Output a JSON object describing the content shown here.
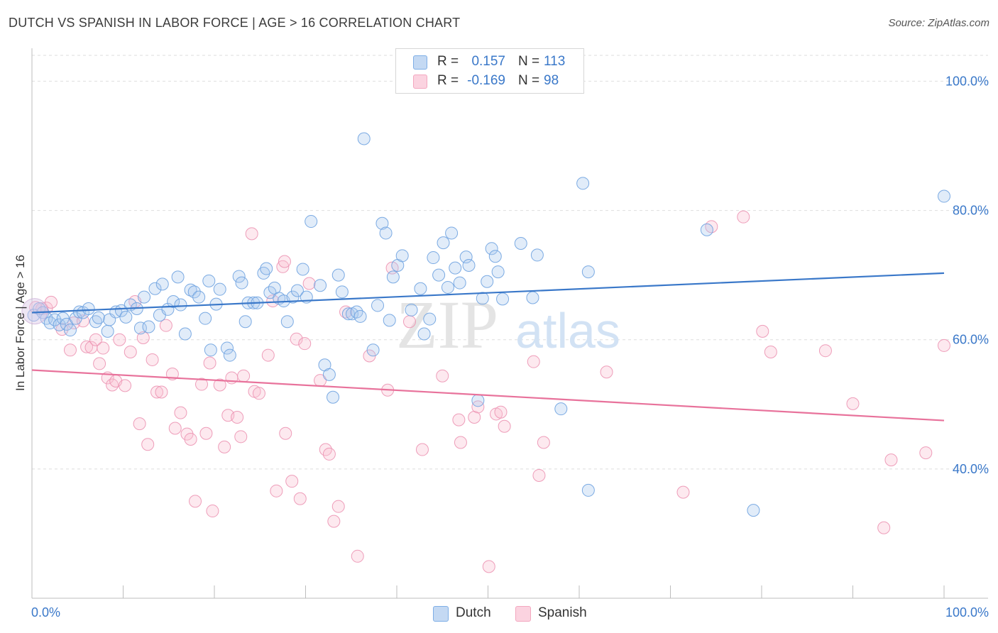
{
  "title": "DUTCH VS SPANISH IN LABOR FORCE | AGE > 16 CORRELATION CHART",
  "source": "Source: ZipAtlas.com",
  "watermark": {
    "zip": "ZIP",
    "atlas": "atlas"
  },
  "legend": {
    "rows": [
      {
        "r_label": "R =",
        "r_value": "0.157",
        "n_label": "N =",
        "n_value": "113",
        "color": "#7eaee6"
      },
      {
        "r_label": "R =",
        "r_value": "-0.169",
        "n_label": "N =",
        "n_value": "98",
        "color": "#f3a7bf"
      }
    ]
  },
  "bottom_legend": [
    {
      "label": "Dutch",
      "color": "#7eaee6"
    },
    {
      "label": "Spanish",
      "color": "#f3a7bf"
    }
  ],
  "chart_data": {
    "type": "scatter",
    "title": "DUTCH VS SPANISH IN LABOR FORCE | AGE > 16 CORRELATION CHART",
    "xlabel": "",
    "ylabel": "In Labor Force | Age > 16",
    "xlim": [
      0,
      100
    ],
    "ylim": [
      20,
      104
    ],
    "x_tick_labels": [
      "0.0%",
      "100.0%"
    ],
    "y_ticks": [
      40,
      60,
      80,
      100
    ],
    "y_tick_labels": [
      "40.0%",
      "60.0%",
      "80.0%",
      "100.0%"
    ],
    "grid": true,
    "legend_position": "top-center",
    "colors": {
      "dutch": "#3a78c9",
      "spanish": "#e8729b"
    },
    "series": [
      {
        "name": "Dutch",
        "trend": {
          "start": [
            0,
            64.2
          ],
          "end": [
            100,
            70.3
          ]
        },
        "points": [
          [
            0.2,
            63.8
          ],
          [
            0.8,
            64.8
          ],
          [
            1.2,
            64.2
          ],
          [
            1.6,
            63.3
          ],
          [
            2.0,
            62.6
          ],
          [
            2.5,
            63.1
          ],
          [
            3.0,
            62.3
          ],
          [
            3.4,
            63.3
          ],
          [
            3.8,
            62.4
          ],
          [
            4.2,
            61.5
          ],
          [
            4.8,
            63.3
          ],
          [
            5.2,
            64.3
          ],
          [
            5.6,
            64.2
          ],
          [
            6.2,
            64.8
          ],
          [
            7.0,
            62.8
          ],
          [
            7.3,
            63.4
          ],
          [
            8.3,
            61.3
          ],
          [
            8.5,
            63.1
          ],
          [
            9.2,
            64.3
          ],
          [
            9.8,
            64.5
          ],
          [
            10.3,
            63.5
          ],
          [
            10.8,
            65.4
          ],
          [
            11.5,
            64.8
          ],
          [
            11.9,
            61.8
          ],
          [
            12.3,
            66.6
          ],
          [
            12.8,
            62.0
          ],
          [
            13.5,
            67.9
          ],
          [
            14.0,
            63.8
          ],
          [
            14.3,
            68.6
          ],
          [
            14.9,
            64.7
          ],
          [
            15.5,
            65.9
          ],
          [
            16.0,
            69.7
          ],
          [
            16.3,
            65.4
          ],
          [
            16.8,
            60.9
          ],
          [
            17.4,
            67.7
          ],
          [
            17.8,
            67.4
          ],
          [
            18.3,
            66.6
          ],
          [
            19.0,
            63.3
          ],
          [
            19.4,
            69.1
          ],
          [
            19.6,
            58.4
          ],
          [
            20.2,
            65.5
          ],
          [
            20.6,
            67.8
          ],
          [
            21.4,
            58.7
          ],
          [
            21.7,
            57.6
          ],
          [
            22.7,
            69.8
          ],
          [
            23.0,
            68.8
          ],
          [
            23.4,
            62.8
          ],
          [
            23.7,
            65.7
          ],
          [
            24.3,
            65.7
          ],
          [
            24.7,
            65.7
          ],
          [
            25.4,
            70.3
          ],
          [
            25.7,
            71.0
          ],
          [
            26.1,
            67.3
          ],
          [
            26.6,
            68.0
          ],
          [
            27.1,
            66.4
          ],
          [
            27.6,
            66.0
          ],
          [
            28.0,
            62.8
          ],
          [
            28.6,
            66.6
          ],
          [
            29.1,
            67.6
          ],
          [
            29.7,
            70.9
          ],
          [
            30.1,
            66.6
          ],
          [
            30.6,
            78.3
          ],
          [
            31.6,
            68.4
          ],
          [
            32.1,
            56.1
          ],
          [
            32.6,
            54.6
          ],
          [
            33.0,
            51.1
          ],
          [
            33.6,
            70.0
          ],
          [
            34.0,
            67.4
          ],
          [
            34.7,
            64.0
          ],
          [
            35.1,
            64.0
          ],
          [
            35.6,
            64.3
          ],
          [
            36.0,
            63.6
          ],
          [
            36.4,
            91.1
          ],
          [
            37.4,
            58.4
          ],
          [
            37.9,
            65.3
          ],
          [
            38.4,
            78.0
          ],
          [
            38.8,
            76.5
          ],
          [
            39.2,
            63.0
          ],
          [
            39.6,
            69.7
          ],
          [
            40.1,
            71.5
          ],
          [
            40.6,
            73.0
          ],
          [
            41.6,
            64.6
          ],
          [
            42.6,
            67.9
          ],
          [
            43.0,
            60.9
          ],
          [
            43.6,
            63.2
          ],
          [
            44.0,
            72.7
          ],
          [
            44.6,
            70.0
          ],
          [
            45.1,
            75.0
          ],
          [
            45.6,
            68.1
          ],
          [
            46.0,
            76.5
          ],
          [
            46.4,
            71.1
          ],
          [
            46.9,
            68.8
          ],
          [
            47.6,
            72.8
          ],
          [
            47.9,
            71.5
          ],
          [
            48.9,
            50.6
          ],
          [
            49.4,
            66.4
          ],
          [
            49.9,
            69.0
          ],
          [
            50.4,
            74.1
          ],
          [
            50.8,
            72.9
          ],
          [
            51.1,
            70.5
          ],
          [
            51.6,
            66.3
          ],
          [
            53.6,
            74.9
          ],
          [
            54.9,
            66.5
          ],
          [
            55.4,
            73.1
          ],
          [
            58.0,
            49.3
          ],
          [
            60.4,
            84.2
          ],
          [
            61.0,
            70.5
          ],
          [
            61.0,
            36.7
          ],
          [
            74.0,
            77.0
          ],
          [
            79.1,
            33.6
          ],
          [
            100.0,
            82.2
          ]
        ]
      },
      {
        "name": "Spanish",
        "trend": {
          "start": [
            0,
            55.3
          ],
          "end": [
            100,
            47.5
          ]
        },
        "points": [
          [
            0.4,
            65.0
          ],
          [
            1.1,
            64.8
          ],
          [
            1.6,
            64.9
          ],
          [
            2.1,
            65.8
          ],
          [
            3.3,
            61.6
          ],
          [
            4.2,
            58.4
          ],
          [
            4.6,
            62.6
          ],
          [
            5.6,
            62.9
          ],
          [
            6.0,
            58.9
          ],
          [
            6.5,
            58.8
          ],
          [
            7.0,
            60.0
          ],
          [
            7.4,
            56.3
          ],
          [
            7.8,
            58.7
          ],
          [
            8.3,
            54.1
          ],
          [
            8.8,
            53.0
          ],
          [
            9.2,
            53.6
          ],
          [
            9.6,
            60.0
          ],
          [
            10.2,
            52.9
          ],
          [
            10.8,
            58.1
          ],
          [
            11.3,
            65.9
          ],
          [
            11.8,
            47.0
          ],
          [
            12.2,
            60.3
          ],
          [
            12.7,
            43.8
          ],
          [
            13.2,
            56.9
          ],
          [
            13.7,
            51.9
          ],
          [
            14.2,
            51.9
          ],
          [
            14.7,
            62.2
          ],
          [
            15.4,
            54.7
          ],
          [
            15.7,
            46.3
          ],
          [
            16.3,
            48.7
          ],
          [
            17.0,
            45.4
          ],
          [
            17.4,
            44.6
          ],
          [
            17.9,
            35.0
          ],
          [
            18.6,
            53.1
          ],
          [
            19.1,
            45.5
          ],
          [
            19.5,
            56.4
          ],
          [
            19.8,
            33.5
          ],
          [
            20.6,
            53.0
          ],
          [
            21.1,
            43.4
          ],
          [
            21.5,
            48.3
          ],
          [
            21.9,
            54.1
          ],
          [
            22.5,
            48.0
          ],
          [
            22.9,
            45.0
          ],
          [
            23.2,
            54.4
          ],
          [
            24.1,
            76.4
          ],
          [
            24.4,
            52.0
          ],
          [
            24.9,
            51.7
          ],
          [
            25.9,
            57.6
          ],
          [
            26.4,
            66.0
          ],
          [
            26.8,
            36.6
          ],
          [
            27.5,
            71.3
          ],
          [
            27.7,
            72.1
          ],
          [
            27.8,
            45.5
          ],
          [
            28.5,
            38.1
          ],
          [
            29.0,
            60.1
          ],
          [
            29.4,
            35.4
          ],
          [
            29.9,
            59.4
          ],
          [
            30.4,
            68.7
          ],
          [
            31.6,
            53.7
          ],
          [
            32.2,
            43.0
          ],
          [
            32.6,
            42.3
          ],
          [
            33.1,
            31.9
          ],
          [
            33.6,
            34.2
          ],
          [
            34.4,
            64.3
          ],
          [
            35.7,
            26.5
          ],
          [
            37.0,
            57.5
          ],
          [
            39.0,
            52.2
          ],
          [
            39.5,
            71.1
          ],
          [
            41.4,
            62.8
          ],
          [
            42.8,
            43.0
          ],
          [
            45.0,
            54.4
          ],
          [
            46.8,
            47.6
          ],
          [
            47.0,
            44.1
          ],
          [
            48.5,
            48.0
          ],
          [
            48.9,
            49.6
          ],
          [
            50.1,
            24.9
          ],
          [
            50.9,
            48.5
          ],
          [
            51.4,
            48.8
          ],
          [
            51.8,
            46.6
          ],
          [
            55.0,
            56.6
          ],
          [
            55.6,
            39.0
          ],
          [
            56.1,
            44.1
          ],
          [
            63.0,
            55.0
          ],
          [
            71.4,
            36.4
          ],
          [
            74.5,
            77.5
          ],
          [
            78.0,
            79.0
          ],
          [
            80.1,
            61.3
          ],
          [
            81.0,
            58.1
          ],
          [
            87.0,
            58.3
          ],
          [
            90.0,
            50.1
          ],
          [
            93.4,
            30.9
          ],
          [
            94.2,
            41.4
          ],
          [
            98.0,
            42.5
          ],
          [
            100.0,
            59.1
          ]
        ]
      }
    ]
  }
}
